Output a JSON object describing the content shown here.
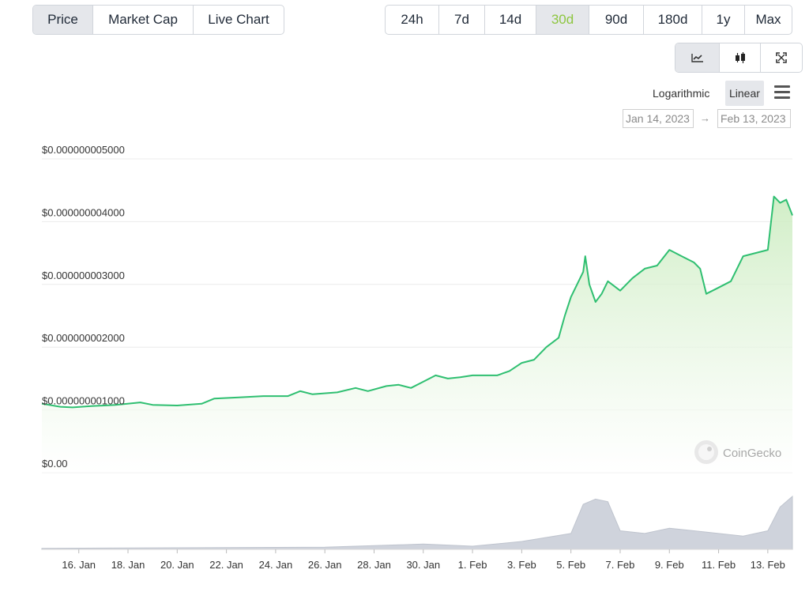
{
  "metric_tabs": [
    {
      "label": "Price",
      "active": true
    },
    {
      "label": "Market Cap",
      "active": false
    },
    {
      "label": "Live Chart",
      "active": false
    }
  ],
  "range_tabs": [
    {
      "label": "24h",
      "active": false
    },
    {
      "label": "7d",
      "active": false
    },
    {
      "label": "14d",
      "active": false
    },
    {
      "label": "30d",
      "active": true
    },
    {
      "label": "90d",
      "active": false
    },
    {
      "label": "180d",
      "active": false
    },
    {
      "label": "1y",
      "active": false
    },
    {
      "label": "Max",
      "active": false
    }
  ],
  "chart_type_buttons": [
    {
      "icon": "line-chart-icon",
      "active": true
    },
    {
      "icon": "candlestick-icon",
      "active": false
    },
    {
      "icon": "fullscreen-icon",
      "active": false
    }
  ],
  "scale": {
    "logarithmic": "Logarithmic",
    "linear": "Linear",
    "menu_icon": "hamburger-menu-icon"
  },
  "date_range": {
    "from": "Jan 14, 2023",
    "to": "Feb 13, 2023",
    "arrow": "→"
  },
  "watermark": "CoinGecko",
  "colors": {
    "line": "#2fbf71",
    "fill": "#dff3d6",
    "volume": "#cfd3dc",
    "active_range": "#8dc63f"
  },
  "chart_data": {
    "type": "area",
    "title": "",
    "xlabel": "",
    "ylabel": "",
    "ylim": [
      0,
      5e-09
    ],
    "y_ticks": [
      {
        "value": 0,
        "label": "$0.00"
      },
      {
        "value": 1e-09,
        "label": "$0.000000001000"
      },
      {
        "value": 2e-09,
        "label": "$0.000000002000"
      },
      {
        "value": 3e-09,
        "label": "$0.000000003000"
      },
      {
        "value": 4e-09,
        "label": "$0.000000004000"
      },
      {
        "value": 5e-09,
        "label": "$0.000000005000"
      }
    ],
    "x_range": [
      "2023-01-14T12:00",
      "2023-02-14T00:00"
    ],
    "x_ticks": [
      {
        "date": "2023-01-16",
        "label": "16. Jan"
      },
      {
        "date": "2023-01-18",
        "label": "18. Jan"
      },
      {
        "date": "2023-01-20",
        "label": "20. Jan"
      },
      {
        "date": "2023-01-22",
        "label": "22. Jan"
      },
      {
        "date": "2023-01-24",
        "label": "24. Jan"
      },
      {
        "date": "2023-01-26",
        "label": "26. Jan"
      },
      {
        "date": "2023-01-28",
        "label": "28. Jan"
      },
      {
        "date": "2023-01-30",
        "label": "30. Jan"
      },
      {
        "date": "2023-02-01",
        "label": "1. Feb"
      },
      {
        "date": "2023-02-03",
        "label": "3. Feb"
      },
      {
        "date": "2023-02-05",
        "label": "5. Feb"
      },
      {
        "date": "2023-02-07",
        "label": "7. Feb"
      },
      {
        "date": "2023-02-09",
        "label": "9. Feb"
      },
      {
        "date": "2023-02-11",
        "label": "11. Feb"
      },
      {
        "date": "2023-02-13",
        "label": "13. Feb"
      }
    ],
    "series": [
      {
        "points": [
          [
            "2023-01-14T12:00",
            1.1e-09
          ],
          [
            "2023-01-15T06:00",
            1.05e-09
          ],
          [
            "2023-01-15T18:00",
            1.04e-09
          ],
          [
            "2023-01-16T12:00",
            1.06e-09
          ],
          [
            "2023-01-17T12:00",
            1.08e-09
          ],
          [
            "2023-01-18T12:00",
            1.12e-09
          ],
          [
            "2023-01-19T00:00",
            1.08e-09
          ],
          [
            "2023-01-20T00:00",
            1.07e-09
          ],
          [
            "2023-01-21T00:00",
            1.1e-09
          ],
          [
            "2023-01-21T12:00",
            1.18e-09
          ],
          [
            "2023-01-22T12:00",
            1.2e-09
          ],
          [
            "2023-01-23T12:00",
            1.22e-09
          ],
          [
            "2023-01-24T12:00",
            1.22e-09
          ],
          [
            "2023-01-25T00:00",
            1.3e-09
          ],
          [
            "2023-01-25T12:00",
            1.25e-09
          ],
          [
            "2023-01-26T12:00",
            1.28e-09
          ],
          [
            "2023-01-27T06:00",
            1.35e-09
          ],
          [
            "2023-01-27T18:00",
            1.3e-09
          ],
          [
            "2023-01-28T12:00",
            1.38e-09
          ],
          [
            "2023-01-29T00:00",
            1.4e-09
          ],
          [
            "2023-01-29T12:00",
            1.35e-09
          ],
          [
            "2023-01-30T00:00",
            1.45e-09
          ],
          [
            "2023-01-30T12:00",
            1.55e-09
          ],
          [
            "2023-01-31T00:00",
            1.5e-09
          ],
          [
            "2023-01-31T12:00",
            1.52e-09
          ],
          [
            "2023-02-01T00:00",
            1.55e-09
          ],
          [
            "2023-02-01T12:00",
            1.55e-09
          ],
          [
            "2023-02-02T00:00",
            1.55e-09
          ],
          [
            "2023-02-02T12:00",
            1.62e-09
          ],
          [
            "2023-02-03T00:00",
            1.75e-09
          ],
          [
            "2023-02-03T12:00",
            1.8e-09
          ],
          [
            "2023-02-04T00:00",
            2e-09
          ],
          [
            "2023-02-04T12:00",
            2.15e-09
          ],
          [
            "2023-02-04T18:00",
            2.5e-09
          ],
          [
            "2023-02-05T00:00",
            2.8e-09
          ],
          [
            "2023-02-05T12:00",
            3.2e-09
          ],
          [
            "2023-02-05T14:00",
            3.45e-09
          ],
          [
            "2023-02-05T18:00",
            3e-09
          ],
          [
            "2023-02-06T00:00",
            2.72e-09
          ],
          [
            "2023-02-06T06:00",
            2.85e-09
          ],
          [
            "2023-02-06T12:00",
            3.05e-09
          ],
          [
            "2023-02-07T00:00",
            2.9e-09
          ],
          [
            "2023-02-07T12:00",
            3.1e-09
          ],
          [
            "2023-02-08T00:00",
            3.25e-09
          ],
          [
            "2023-02-08T12:00",
            3.3e-09
          ],
          [
            "2023-02-09T00:00",
            3.55e-09
          ],
          [
            "2023-02-09T12:00",
            3.45e-09
          ],
          [
            "2023-02-10T00:00",
            3.35e-09
          ],
          [
            "2023-02-10T06:00",
            3.25e-09
          ],
          [
            "2023-02-10T12:00",
            2.85e-09
          ],
          [
            "2023-02-11T00:00",
            2.95e-09
          ],
          [
            "2023-02-11T12:00",
            3.05e-09
          ],
          [
            "2023-02-12T00:00",
            3.45e-09
          ],
          [
            "2023-02-12T12:00",
            3.5e-09
          ],
          [
            "2023-02-13T00:00",
            3.55e-09
          ],
          [
            "2023-02-13T06:00",
            4.4e-09
          ],
          [
            "2023-02-13T12:00",
            4.3e-09
          ],
          [
            "2023-02-13T18:00",
            4.35e-09
          ],
          [
            "2023-02-14T00:00",
            4.1e-09
          ]
        ]
      }
    ],
    "volume": {
      "points": [
        [
          "2023-01-14T12:00",
          0.02
        ],
        [
          "2023-01-20T00:00",
          0.03
        ],
        [
          "2023-01-26T00:00",
          0.04
        ],
        [
          "2023-01-30T00:00",
          0.1
        ],
        [
          "2023-02-01T00:00",
          0.06
        ],
        [
          "2023-02-03T00:00",
          0.15
        ],
        [
          "2023-02-05T00:00",
          0.3
        ],
        [
          "2023-02-05T12:00",
          0.85
        ],
        [
          "2023-02-06T00:00",
          0.95
        ],
        [
          "2023-02-06T12:00",
          0.9
        ],
        [
          "2023-02-07T00:00",
          0.35
        ],
        [
          "2023-02-08T00:00",
          0.3
        ],
        [
          "2023-02-09T00:00",
          0.4
        ],
        [
          "2023-02-10T00:00",
          0.35
        ],
        [
          "2023-02-11T00:00",
          0.3
        ],
        [
          "2023-02-12T00:00",
          0.25
        ],
        [
          "2023-02-13T00:00",
          0.35
        ],
        [
          "2023-02-13T12:00",
          0.8
        ],
        [
          "2023-02-14T00:00",
          1.0
        ]
      ]
    }
  }
}
